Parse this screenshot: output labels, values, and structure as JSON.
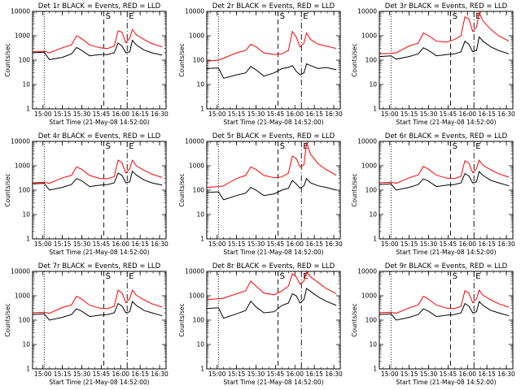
{
  "figure": {
    "background": "#ffffff",
    "axis_color": "#000000",
    "events_color": "#000000",
    "lld_color": "#ff0000"
  },
  "chart_data": [
    {
      "type": "line",
      "title": "Det 1r BLACK = Events, RED = LLD",
      "xlabel": "Start Time (21-May-08 14:52:00)",
      "ylabel": "Counts/sec",
      "yscale": "log",
      "ylim": [
        1,
        10000
      ],
      "xlim": [
        "14:52",
        "16:35"
      ],
      "x_ticks": [
        "15:00",
        "15:15",
        "15:30",
        "15:45",
        "16:00",
        "16:15",
        "16:30"
      ],
      "y_ticks": [
        "1",
        "10",
        "100",
        "1000",
        "10000"
      ],
      "grid": false,
      "vlines": [
        {
          "time": "15:01",
          "style": "dotted"
        },
        {
          "time": "15:47",
          "style": "dashed",
          "label": "S"
        },
        {
          "time": "16:05",
          "style": "dashdot",
          "label": "E"
        }
      ],
      "x": [
        "14:52",
        "15:01",
        "15:05",
        "15:15",
        "15:22",
        "15:26",
        "15:30",
        "15:36",
        "15:44",
        "15:50",
        "15:55",
        "15:58",
        "16:01",
        "16:04",
        "16:07",
        "16:09",
        "16:12",
        "16:18",
        "16:24",
        "16:32"
      ],
      "series": [
        {
          "name": "Events",
          "color": "#000000",
          "values": [
            200,
            210,
            105,
            130,
            180,
            330,
            250,
            150,
            170,
            170,
            200,
            500,
            380,
            200,
            220,
            650,
            420,
            260,
            200,
            160
          ]
        },
        {
          "name": "LLD",
          "color": "#ff0000",
          "values": [
            220,
            230,
            200,
            320,
            420,
            1000,
            750,
            420,
            320,
            300,
            380,
            1600,
            1400,
            520,
            800,
            1800,
            1100,
            700,
            480,
            350
          ]
        }
      ]
    },
    {
      "type": "line",
      "title": "Det 2r BLACK = Events, RED = LLD",
      "xlabel": "Start Time (21-May-08 14:52:00)",
      "ylabel": "Counts/sec",
      "yscale": "log",
      "ylim": [
        1,
        10000
      ],
      "xlim": [
        "14:52",
        "16:35"
      ],
      "x_ticks": [
        "15:00",
        "15:15",
        "15:30",
        "15:45",
        "16:00",
        "16:15",
        "16:30"
      ],
      "y_ticks": [
        "1",
        "10",
        "100",
        "1000",
        "10000"
      ],
      "grid": false,
      "vlines": [
        {
          "time": "15:01",
          "style": "dotted"
        },
        {
          "time": "15:47",
          "style": "dashed",
          "label": "S"
        },
        {
          "time": "16:05",
          "style": "dashdot",
          "label": "E"
        }
      ],
      "x": [
        "14:52",
        "15:01",
        "15:05",
        "15:15",
        "15:22",
        "15:26",
        "15:30",
        "15:36",
        "15:44",
        "15:50",
        "15:55",
        "15:58",
        "16:01",
        "16:04",
        "16:07",
        "16:09",
        "16:12",
        "16:18",
        "16:24",
        "16:32"
      ],
      "series": [
        {
          "name": "Events",
          "color": "#000000",
          "values": [
            45,
            48,
            18,
            25,
            30,
            55,
            40,
            22,
            30,
            45,
            50,
            60,
            35,
            25,
            30,
            70,
            60,
            45,
            50,
            40
          ]
        },
        {
          "name": "LLD",
          "color": "#ff0000",
          "values": [
            90,
            100,
            120,
            200,
            250,
            450,
            350,
            200,
            170,
            180,
            250,
            1500,
            900,
            350,
            500,
            1300,
            700,
            450,
            380,
            300
          ]
        }
      ]
    },
    {
      "type": "line",
      "title": "Det 3r BLACK = Events, RED = LLD",
      "xlabel": "Start Time (21-May-08 14:52:00)",
      "ylabel": "Counts/sec",
      "yscale": "log",
      "ylim": [
        1,
        10000
      ],
      "xlim": [
        "14:52",
        "16:35"
      ],
      "x_ticks": [
        "15:00",
        "15:15",
        "15:30",
        "15:45",
        "16:00",
        "16:15",
        "16:30"
      ],
      "y_ticks": [
        "1",
        "10",
        "100",
        "1000",
        "10000"
      ],
      "grid": false,
      "vlines": [
        {
          "time": "15:01",
          "style": "dotted"
        },
        {
          "time": "15:47",
          "style": "dashed",
          "label": "S"
        },
        {
          "time": "16:05",
          "style": "dashdot",
          "label": "E"
        }
      ],
      "x": [
        "14:52",
        "15:01",
        "15:05",
        "15:15",
        "15:22",
        "15:26",
        "15:30",
        "15:36",
        "15:44",
        "15:50",
        "15:55",
        "15:58",
        "16:01",
        "16:04",
        "16:07",
        "16:09",
        "16:12",
        "16:18",
        "16:24",
        "16:32"
      ],
      "series": [
        {
          "name": "Events",
          "color": "#000000",
          "values": [
            140,
            150,
            110,
            140,
            180,
            320,
            250,
            150,
            170,
            180,
            220,
            600,
            450,
            220,
            250,
            900,
            600,
            350,
            250,
            180
          ]
        },
        {
          "name": "LLD",
          "color": "#ff0000",
          "values": [
            180,
            190,
            200,
            380,
            500,
            1300,
            1000,
            600,
            550,
            700,
            1000,
            6000,
            5000,
            1500,
            2200,
            9000,
            4000,
            1800,
            1000,
            600
          ]
        }
      ]
    },
    {
      "type": "line",
      "title": "Det 4r BLACK = Events, RED = LLD",
      "xlabel": "Start Time (21-May-08 14:52:00)",
      "ylabel": "Counts/sec",
      "yscale": "log",
      "ylim": [
        1,
        10000
      ],
      "xlim": [
        "14:52",
        "16:35"
      ],
      "x_ticks": [
        "15:00",
        "15:15",
        "15:30",
        "15:45",
        "16:00",
        "16:15",
        "16:30"
      ],
      "y_ticks": [
        "1",
        "10",
        "100",
        "1000",
        "10000"
      ],
      "grid": false,
      "vlines": [
        {
          "time": "15:01",
          "style": "dotted"
        },
        {
          "time": "15:47",
          "style": "dashed",
          "label": "S"
        },
        {
          "time": "16:05",
          "style": "dashdot",
          "label": "E"
        }
      ],
      "x": [
        "14:52",
        "15:01",
        "15:05",
        "15:15",
        "15:22",
        "15:26",
        "15:30",
        "15:36",
        "15:44",
        "15:50",
        "15:55",
        "15:58",
        "16:01",
        "16:04",
        "16:07",
        "16:09",
        "16:12",
        "16:18",
        "16:24",
        "16:32"
      ],
      "series": [
        {
          "name": "Events",
          "color": "#000000",
          "values": [
            180,
            190,
            100,
            130,
            170,
            300,
            240,
            140,
            160,
            170,
            200,
            500,
            400,
            200,
            220,
            600,
            420,
            260,
            200,
            160
          ]
        },
        {
          "name": "LLD",
          "color": "#ff0000",
          "values": [
            200,
            210,
            190,
            320,
            400,
            900,
            700,
            400,
            300,
            290,
            360,
            1700,
            1300,
            500,
            750,
            1700,
            1000,
            650,
            450,
            330
          ]
        }
      ]
    },
    {
      "type": "line",
      "title": "Det 5r BLACK = Events, RED = LLD",
      "xlabel": "Start Time (21-May-08 14:52:00)",
      "ylabel": "Counts/sec",
      "yscale": "log",
      "ylim": [
        1,
        10000
      ],
      "xlim": [
        "14:52",
        "16:35"
      ],
      "x_ticks": [
        "15:00",
        "15:15",
        "15:30",
        "15:45",
        "16:00",
        "16:15",
        "16:30"
      ],
      "y_ticks": [
        "1",
        "10",
        "100",
        "1000",
        "10000"
      ],
      "grid": false,
      "vlines": [
        {
          "time": "15:01",
          "style": "dotted"
        },
        {
          "time": "15:47",
          "style": "dashed",
          "label": "S"
        },
        {
          "time": "16:05",
          "style": "dashdot",
          "label": "E"
        }
      ],
      "x": [
        "14:52",
        "15:01",
        "15:05",
        "15:15",
        "15:22",
        "15:26",
        "15:30",
        "15:36",
        "15:44",
        "15:50",
        "15:55",
        "15:58",
        "16:01",
        "16:04",
        "16:07",
        "16:09",
        "16:12",
        "16:18",
        "16:24",
        "16:32"
      ],
      "series": [
        {
          "name": "Events",
          "color": "#000000",
          "values": [
            80,
            85,
            40,
            60,
            75,
            130,
            100,
            60,
            70,
            100,
            120,
            250,
            180,
            120,
            150,
            300,
            200,
            150,
            130,
            100
          ]
        },
        {
          "name": "LLD",
          "color": "#ff0000",
          "values": [
            130,
            140,
            150,
            300,
            400,
            900,
            700,
            400,
            320,
            350,
            500,
            2500,
            2000,
            900,
            1100,
            9000,
            3000,
            1200,
            700,
            400
          ]
        }
      ]
    },
    {
      "type": "line",
      "title": "Det 6r BLACK = Events, RED = LLD",
      "xlabel": "Start Time (21-May-08 14:52:00)",
      "ylabel": "Counts/sec",
      "yscale": "log",
      "ylim": [
        1,
        10000
      ],
      "xlim": [
        "14:52",
        "16:35"
      ],
      "x_ticks": [
        "15:00",
        "15:15",
        "15:30",
        "15:45",
        "16:00",
        "16:15",
        "16:30"
      ],
      "y_ticks": [
        "1",
        "10",
        "100",
        "1000",
        "10000"
      ],
      "grid": false,
      "vlines": [
        {
          "time": "15:01",
          "style": "dotted"
        },
        {
          "time": "15:47",
          "style": "dashed",
          "label": "S"
        },
        {
          "time": "16:05",
          "style": "dashdot",
          "label": "E"
        }
      ],
      "x": [
        "14:52",
        "15:01",
        "15:05",
        "15:15",
        "15:22",
        "15:26",
        "15:30",
        "15:36",
        "15:44",
        "15:50",
        "15:55",
        "15:58",
        "16:01",
        "16:04",
        "16:07",
        "16:09",
        "16:12",
        "16:18",
        "16:24",
        "16:32"
      ],
      "series": [
        {
          "name": "Events",
          "color": "#000000",
          "values": [
            170,
            180,
            100,
            130,
            170,
            290,
            230,
            140,
            160,
            170,
            200,
            480,
            380,
            200,
            220,
            580,
            400,
            250,
            200,
            150
          ]
        },
        {
          "name": "LLD",
          "color": "#ff0000",
          "values": [
            200,
            210,
            190,
            320,
            420,
            950,
            720,
            410,
            310,
            300,
            370,
            1600,
            1300,
            520,
            760,
            1700,
            1050,
            680,
            470,
            340
          ]
        }
      ]
    },
    {
      "type": "line",
      "title": "Det 7r BLACK = Events, RED = LLD",
      "xlabel": "Start Time (21-May-08 14:52:00)",
      "ylabel": "Counts/sec",
      "yscale": "log",
      "ylim": [
        1,
        10000
      ],
      "xlim": [
        "14:52",
        "16:35"
      ],
      "x_ticks": [
        "15:00",
        "15:15",
        "15:30",
        "15:45",
        "16:00",
        "16:15",
        "16:30"
      ],
      "y_ticks": [
        "1",
        "10",
        "100",
        "1000",
        "10000"
      ],
      "grid": false,
      "vlines": [
        {
          "time": "15:01",
          "style": "dotted"
        },
        {
          "time": "15:47",
          "style": "dashed",
          "label": "S"
        },
        {
          "time": "16:05",
          "style": "dashdot",
          "label": "E"
        }
      ],
      "x": [
        "14:52",
        "15:01",
        "15:05",
        "15:15",
        "15:22",
        "15:26",
        "15:30",
        "15:36",
        "15:44",
        "15:50",
        "15:55",
        "15:58",
        "16:01",
        "16:04",
        "16:07",
        "16:09",
        "16:12",
        "16:18",
        "16:24",
        "16:32"
      ],
      "series": [
        {
          "name": "Events",
          "color": "#000000",
          "values": [
            170,
            180,
            100,
            130,
            170,
            290,
            230,
            140,
            160,
            170,
            200,
            480,
            380,
            200,
            220,
            580,
            400,
            250,
            200,
            150
          ]
        },
        {
          "name": "LLD",
          "color": "#ff0000",
          "values": [
            200,
            210,
            190,
            330,
            420,
            950,
            720,
            410,
            310,
            300,
            370,
            1700,
            1300,
            520,
            760,
            1700,
            1050,
            680,
            470,
            340
          ]
        }
      ]
    },
    {
      "type": "line",
      "title": "Det 8r BLACK = Events, RED = LLD",
      "xlabel": "Start Time (21-May-08 14:52:00)",
      "ylabel": "Counts/sec",
      "yscale": "log",
      "ylim": [
        1,
        10000
      ],
      "xlim": [
        "14:52",
        "16:35"
      ],
      "x_ticks": [
        "15:00",
        "15:15",
        "15:30",
        "15:45",
        "16:00",
        "16:15",
        "16:30"
      ],
      "y_ticks": [
        "1",
        "10",
        "100",
        "1000",
        "10000"
      ],
      "grid": false,
      "vlines": [
        {
          "time": "15:01",
          "style": "dotted"
        },
        {
          "time": "15:47",
          "style": "dashed",
          "label": "S"
        },
        {
          "time": "16:05",
          "style": "dashdot",
          "label": "E"
        }
      ],
      "x": [
        "14:52",
        "15:01",
        "15:05",
        "15:15",
        "15:22",
        "15:26",
        "15:30",
        "15:36",
        "15:44",
        "15:50",
        "15:55",
        "15:58",
        "16:01",
        "16:04",
        "16:07",
        "16:09",
        "16:12",
        "16:18",
        "16:24",
        "16:32"
      ],
      "series": [
        {
          "name": "Events",
          "color": "#000000",
          "values": [
            300,
            320,
            120,
            180,
            250,
            600,
            350,
            200,
            220,
            400,
            500,
            1200,
            1000,
            500,
            700,
            2000,
            1500,
            900,
            600,
            400
          ]
        },
        {
          "name": "LLD",
          "color": "#ff0000",
          "values": [
            700,
            750,
            800,
            1200,
            1600,
            4000,
            2500,
            1300,
            1100,
            1600,
            2500,
            8000,
            6000,
            3000,
            4000,
            9500,
            6000,
            3500,
            2000,
            1200
          ]
        }
      ]
    },
    {
      "type": "line",
      "title": "Det 9r BLACK = Events, RED = LLD",
      "xlabel": "Start Time (21-May-08 14:52:00)",
      "ylabel": "Counts/sec",
      "yscale": "log",
      "ylim": [
        1,
        10000
      ],
      "xlim": [
        "14:52",
        "16:35"
      ],
      "x_ticks": [
        "15:00",
        "15:15",
        "15:30",
        "15:45",
        "16:00",
        "16:15",
        "16:30"
      ],
      "y_ticks": [
        "1",
        "10",
        "100",
        "1000",
        "10000"
      ],
      "grid": false,
      "vlines": [
        {
          "time": "15:01",
          "style": "dotted"
        },
        {
          "time": "15:47",
          "style": "dashed",
          "label": "S"
        },
        {
          "time": "16:05",
          "style": "dashdot",
          "label": "E"
        }
      ],
      "x": [
        "14:52",
        "15:01",
        "15:05",
        "15:15",
        "15:22",
        "15:26",
        "15:30",
        "15:36",
        "15:44",
        "15:50",
        "15:55",
        "15:58",
        "16:01",
        "16:04",
        "16:07",
        "16:09",
        "16:12",
        "16:18",
        "16:24",
        "16:32"
      ],
      "series": [
        {
          "name": "Events",
          "color": "#000000",
          "values": [
            170,
            180,
            100,
            130,
            170,
            290,
            230,
            140,
            160,
            170,
            200,
            480,
            380,
            200,
            220,
            580,
            400,
            250,
            200,
            150
          ]
        },
        {
          "name": "LLD",
          "color": "#ff0000",
          "values": [
            200,
            210,
            190,
            320,
            420,
            950,
            720,
            410,
            310,
            300,
            370,
            1600,
            1300,
            520,
            760,
            1700,
            1050,
            680,
            470,
            340
          ]
        }
      ]
    }
  ]
}
